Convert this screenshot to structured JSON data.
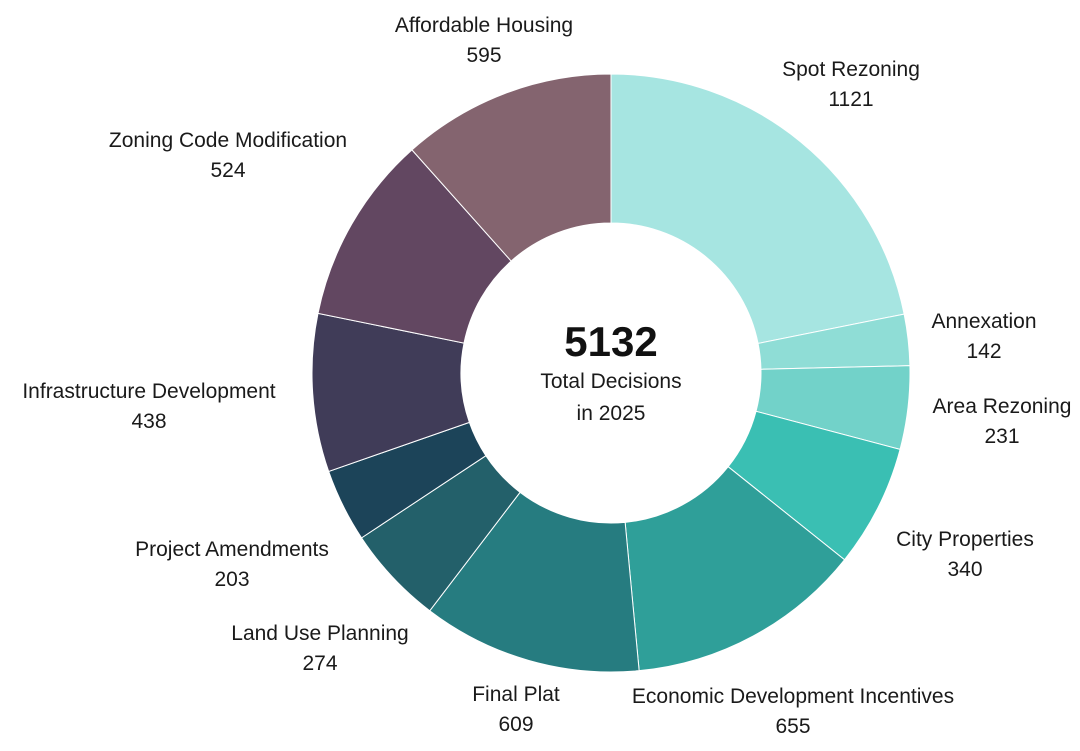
{
  "chart_data": {
    "type": "pie",
    "variant": "donut",
    "center": {
      "total": "5132",
      "line1": "Total Decisions",
      "line2": "in 2025"
    },
    "slices": [
      {
        "name": "Spot Rezoning",
        "value": 1121,
        "color": "#a6e5e1"
      },
      {
        "name": "Annexation",
        "value": 142,
        "color": "#8fddd6"
      },
      {
        "name": "Area Rezoning",
        "value": 231,
        "color": "#72d2c9"
      },
      {
        "name": "City Properties",
        "value": 340,
        "color": "#3abfb3"
      },
      {
        "name": "Economic Development Incentives",
        "value": 655,
        "color": "#2f9f99"
      },
      {
        "name": "Final Plat",
        "value": 609,
        "color": "#267c80"
      },
      {
        "name": "Land Use Planning",
        "value": 274,
        "color": "#23606a"
      },
      {
        "name": "Project Amendments",
        "value": 203,
        "color": "#1c4459"
      },
      {
        "name": "Infrastructure Development",
        "value": 438,
        "color": "#403c58"
      },
      {
        "name": "Zoning Code Modification",
        "value": 524,
        "color": "#624761"
      },
      {
        "name": "Affordable Housing",
        "value": 595,
        "color": "#84646f"
      }
    ]
  }
}
